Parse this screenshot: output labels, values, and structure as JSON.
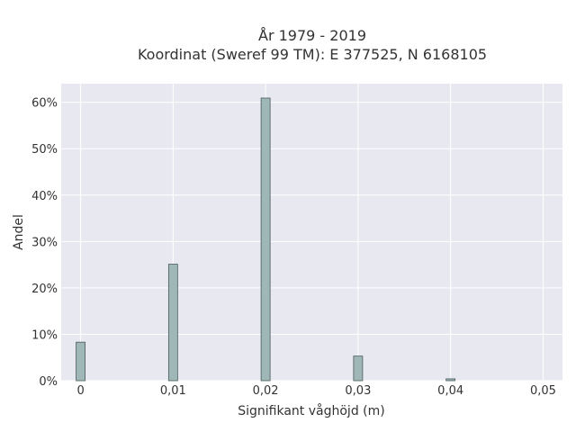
{
  "chart_data": {
    "type": "bar",
    "title_lines": [
      "År 1979 - 2019",
      "Koordinat (Sweref 99 TM): E 377525, N 6168105"
    ],
    "xlabel": "Signifikant våghöjd (m)",
    "ylabel": "Andel",
    "x": [
      0,
      0.01,
      0.02,
      0.03,
      0.04
    ],
    "values": [
      8.3,
      25.1,
      60.9,
      5.3,
      0.4
    ],
    "xlim": [
      -0.0021,
      0.0521
    ],
    "ylim": [
      0,
      64
    ],
    "xticks": [
      0,
      0.01,
      0.02,
      0.03,
      0.04,
      0.05
    ],
    "xtick_labels": [
      "0",
      "0,01",
      "0,02",
      "0,03",
      "0,04",
      "0,05"
    ],
    "yticks": [
      0,
      10,
      20,
      30,
      40,
      50,
      60
    ],
    "ytick_labels": [
      "0%",
      "10%",
      "20%",
      "30%",
      "40%",
      "50%",
      "60%"
    ],
    "grid": true,
    "colors": {
      "plot_background": "#e8e8f0",
      "grid": "#ffffff",
      "bar_fill": "#9fb7b7",
      "bar_edge": "#4a5a5a",
      "text": "#333333"
    }
  }
}
